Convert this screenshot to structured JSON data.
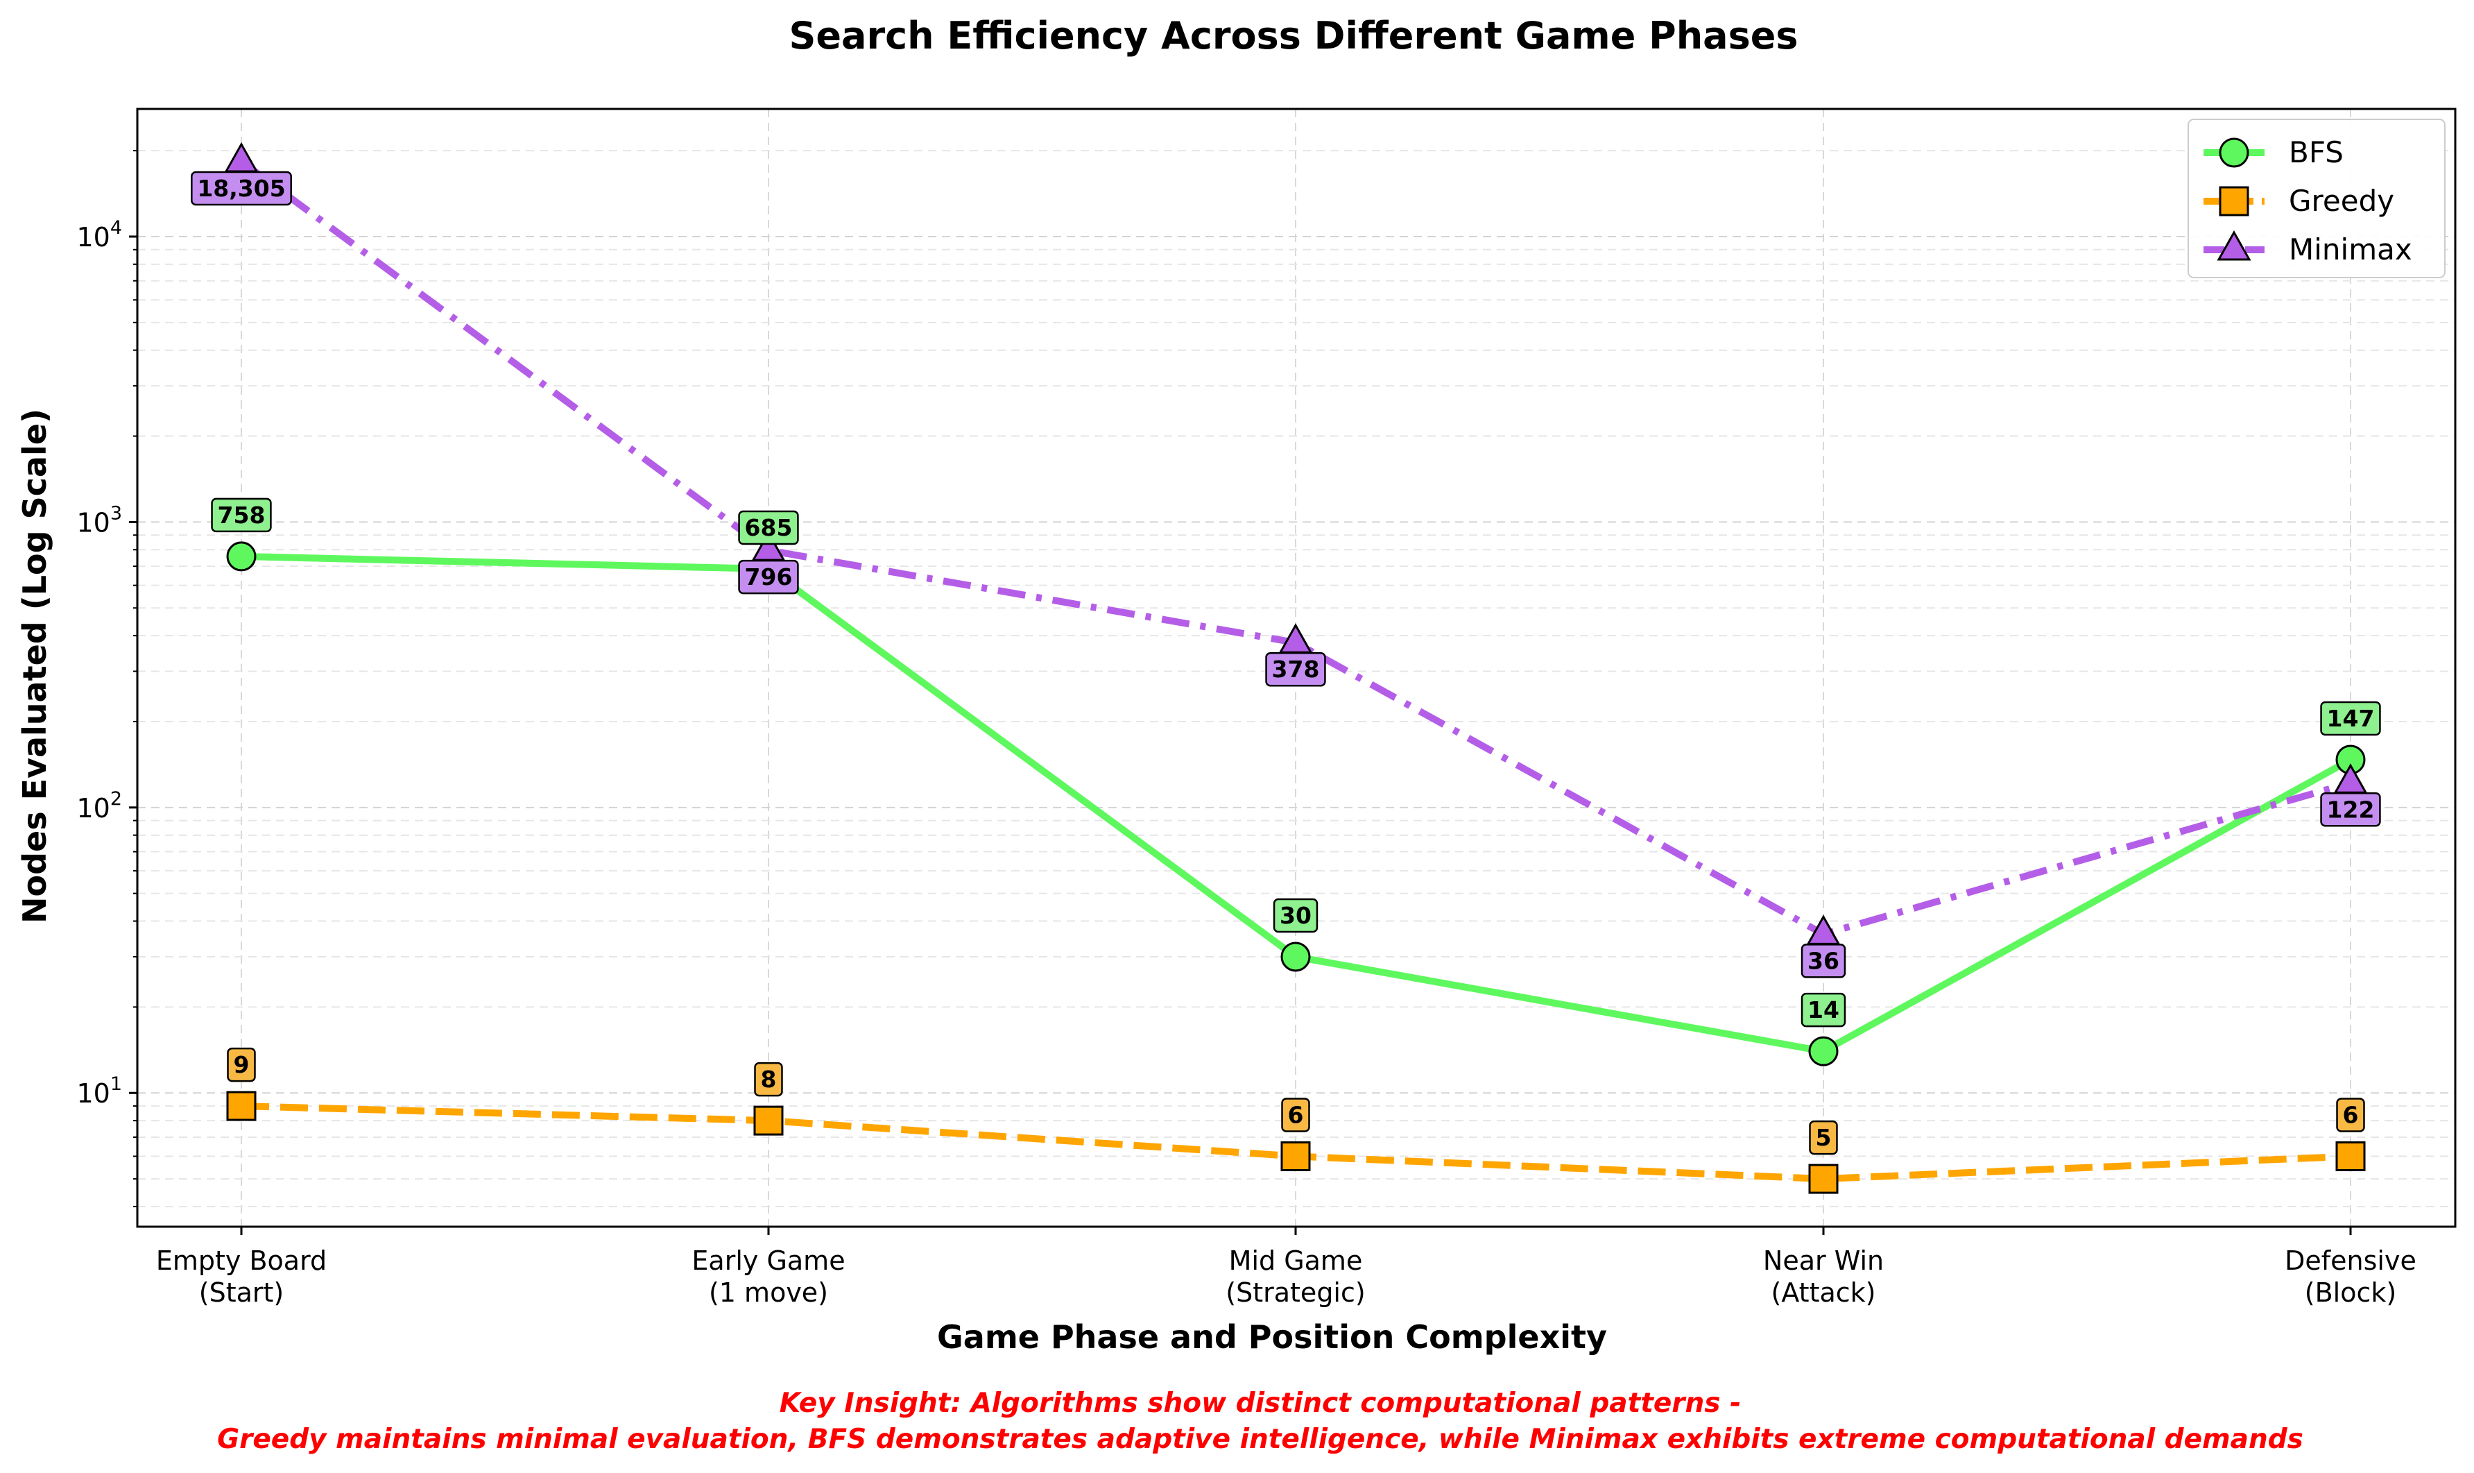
{
  "chart_data": {
    "type": "line",
    "title": "Search Efficiency Across Different Game Phases",
    "xlabel": "Game Phase and Position Complexity",
    "ylabel": "Nodes Evaluated (Log Scale)",
    "yscale": "log",
    "ylim": [
      3.4,
      28000
    ],
    "categories": [
      [
        "Empty Board",
        "(Start)"
      ],
      [
        "Early Game",
        "(1 move)"
      ],
      [
        "Mid Game",
        "(Strategic)"
      ],
      [
        "Near Win",
        "(Attack)"
      ],
      [
        "Defensive",
        "(Block)"
      ]
    ],
    "yticks": [
      {
        "base": "10",
        "exp": "1",
        "value": 10
      },
      {
        "base": "10",
        "exp": "2",
        "value": 100
      },
      {
        "base": "10",
        "exp": "3",
        "value": 1000
      },
      {
        "base": "10",
        "exp": "4",
        "value": 10000
      }
    ],
    "grid": true,
    "legend_position": "top-right",
    "series": [
      {
        "name": "BFS",
        "values": [
          758,
          685,
          30,
          14,
          147
        ],
        "labels": [
          "758",
          "685",
          "30",
          "14",
          "147"
        ],
        "label_placement": [
          "above",
          "above",
          "above",
          "above",
          "above"
        ],
        "color": "#5ef85e",
        "marker": "circle",
        "linestyle": "solid",
        "label_bg": "#8ef08e"
      },
      {
        "name": "Greedy",
        "values": [
          9,
          8,
          6,
          5,
          6
        ],
        "labels": [
          "9",
          "8",
          "6",
          "5",
          "6"
        ],
        "label_placement": [
          "above",
          "above",
          "above",
          "above",
          "above"
        ],
        "color": "#ffa500",
        "marker": "square",
        "linestyle": "dashed",
        "label_bg": "#f7b844"
      },
      {
        "name": "Minimax",
        "values": [
          18305,
          796,
          378,
          36,
          122
        ],
        "labels": [
          "18,305",
          "796",
          "378",
          "36",
          "122"
        ],
        "label_placement": [
          "below",
          "below",
          "below",
          "below",
          "below"
        ],
        "color": "#b45ee8",
        "marker": "triangle",
        "linestyle": "dashdot",
        "label_bg": "#c48ef0"
      }
    ],
    "insight_lines": [
      "Key Insight: Algorithms show distinct computational patterns -",
      "Greedy maintains minimal evaluation, BFS demonstrates adaptive intelligence, while Minimax exhibits extreme computational demands"
    ],
    "insight_color": "#ff0000"
  }
}
